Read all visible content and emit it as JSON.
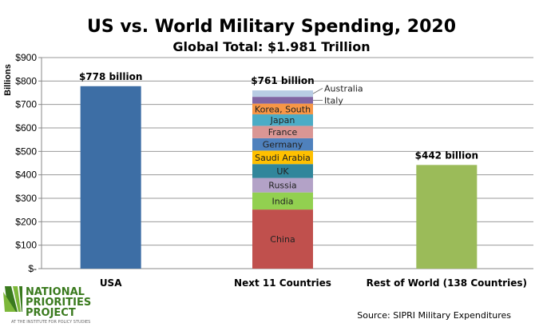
{
  "chart_data": {
    "type": "bar",
    "stacked": true,
    "title": "US vs. World Military Spending, 2020",
    "subtitle": "Global Total: $1.981 Trillion",
    "ylabel": "Billions",
    "xlabel": "",
    "ylim": [
      0,
      900
    ],
    "yticks": [
      "$-",
      "$100",
      "$200",
      "$300",
      "$400",
      "$500",
      "$600",
      "$700",
      "$800",
      "$900"
    ],
    "grid": true,
    "categories": [
      "USA",
      "Next 11 Countries",
      "Rest of World (138 Countries)"
    ],
    "bars": [
      {
        "category": "USA",
        "label": "$778 billion",
        "segments": [
          {
            "name": "",
            "value": 778,
            "color": "#3d6ea5"
          }
        ]
      },
      {
        "category": "Next 11 Countries",
        "label": "$761 billion",
        "segments": [
          {
            "name": "China",
            "value": 252,
            "color": "#c0504d"
          },
          {
            "name": "India",
            "value": 72.9,
            "color": "#92d050"
          },
          {
            "name": "Russia",
            "value": 61.7,
            "color": "#b3a2c7"
          },
          {
            "name": "UK",
            "value": 59.2,
            "color": "#31869b"
          },
          {
            "name": "Saudi Arabia",
            "value": 57.5,
            "color": "#ffc000"
          },
          {
            "name": "Germany",
            "value": 52.8,
            "color": "#4f81bd"
          },
          {
            "name": "France",
            "value": 52.7,
            "color": "#da9694"
          },
          {
            "name": "Japan",
            "value": 49.1,
            "color": "#4bacc6"
          },
          {
            "name": "Korea, South",
            "value": 45.7,
            "color": "#f79646"
          },
          {
            "name": "Italy",
            "value": 28.9,
            "color": "#8064a2"
          },
          {
            "name": "Australia",
            "value": 27.5,
            "color": "#b8cce4"
          }
        ]
      },
      {
        "category": "Rest of World (138 Countries)",
        "label": "$442 billion",
        "segments": [
          {
            "name": "",
            "value": 442,
            "color": "#9bbb59"
          }
        ]
      }
    ],
    "source": "Source: SIPRI Military Expenditures"
  },
  "logo": {
    "line1": "NATIONAL",
    "line2": "PRIORITIES",
    "line3": "PROJECT",
    "tagline": "AT THE INSTITUTE FOR POLICY STUDIES"
  }
}
